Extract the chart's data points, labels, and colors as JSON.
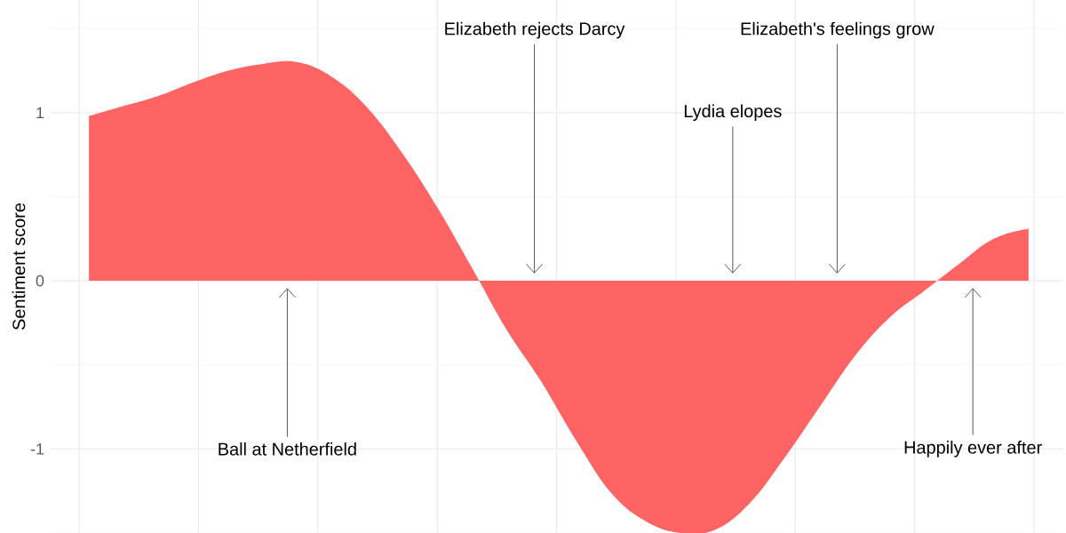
{
  "chart_data": {
    "type": "area",
    "ylabel": "Sentiment score",
    "categories": [
      null,
      null,
      null,
      null,
      null,
      null,
      null,
      null,
      null,
      null,
      null,
      null,
      null,
      null,
      null,
      null,
      null,
      null,
      null,
      null,
      null,
      null,
      null,
      null,
      null,
      null,
      null,
      null
    ],
    "values": [
      0.98,
      1.04,
      1.1,
      1.18,
      1.25,
      1.29,
      1.3,
      1.21,
      1.03,
      0.76,
      0.44,
      0.08,
      -0.29,
      -0.6,
      -0.95,
      -1.26,
      -1.43,
      -1.5,
      -1.48,
      -1.32,
      -1.05,
      -0.75,
      -0.45,
      -0.22,
      -0.06,
      0.1,
      0.25,
      0.31
    ],
    "color": "#ff6464",
    "ylim": [
      -1.5,
      1.67
    ],
    "yticks": [
      -1,
      0,
      1
    ],
    "grid": true,
    "tick_labels": "y",
    "annotations": [
      "Ball at Netherfield",
      "Elizabeth rejects Darcy",
      "Lydia elopes",
      "Elizabeth's feelings grow",
      "Happily ever after"
    ]
  }
}
